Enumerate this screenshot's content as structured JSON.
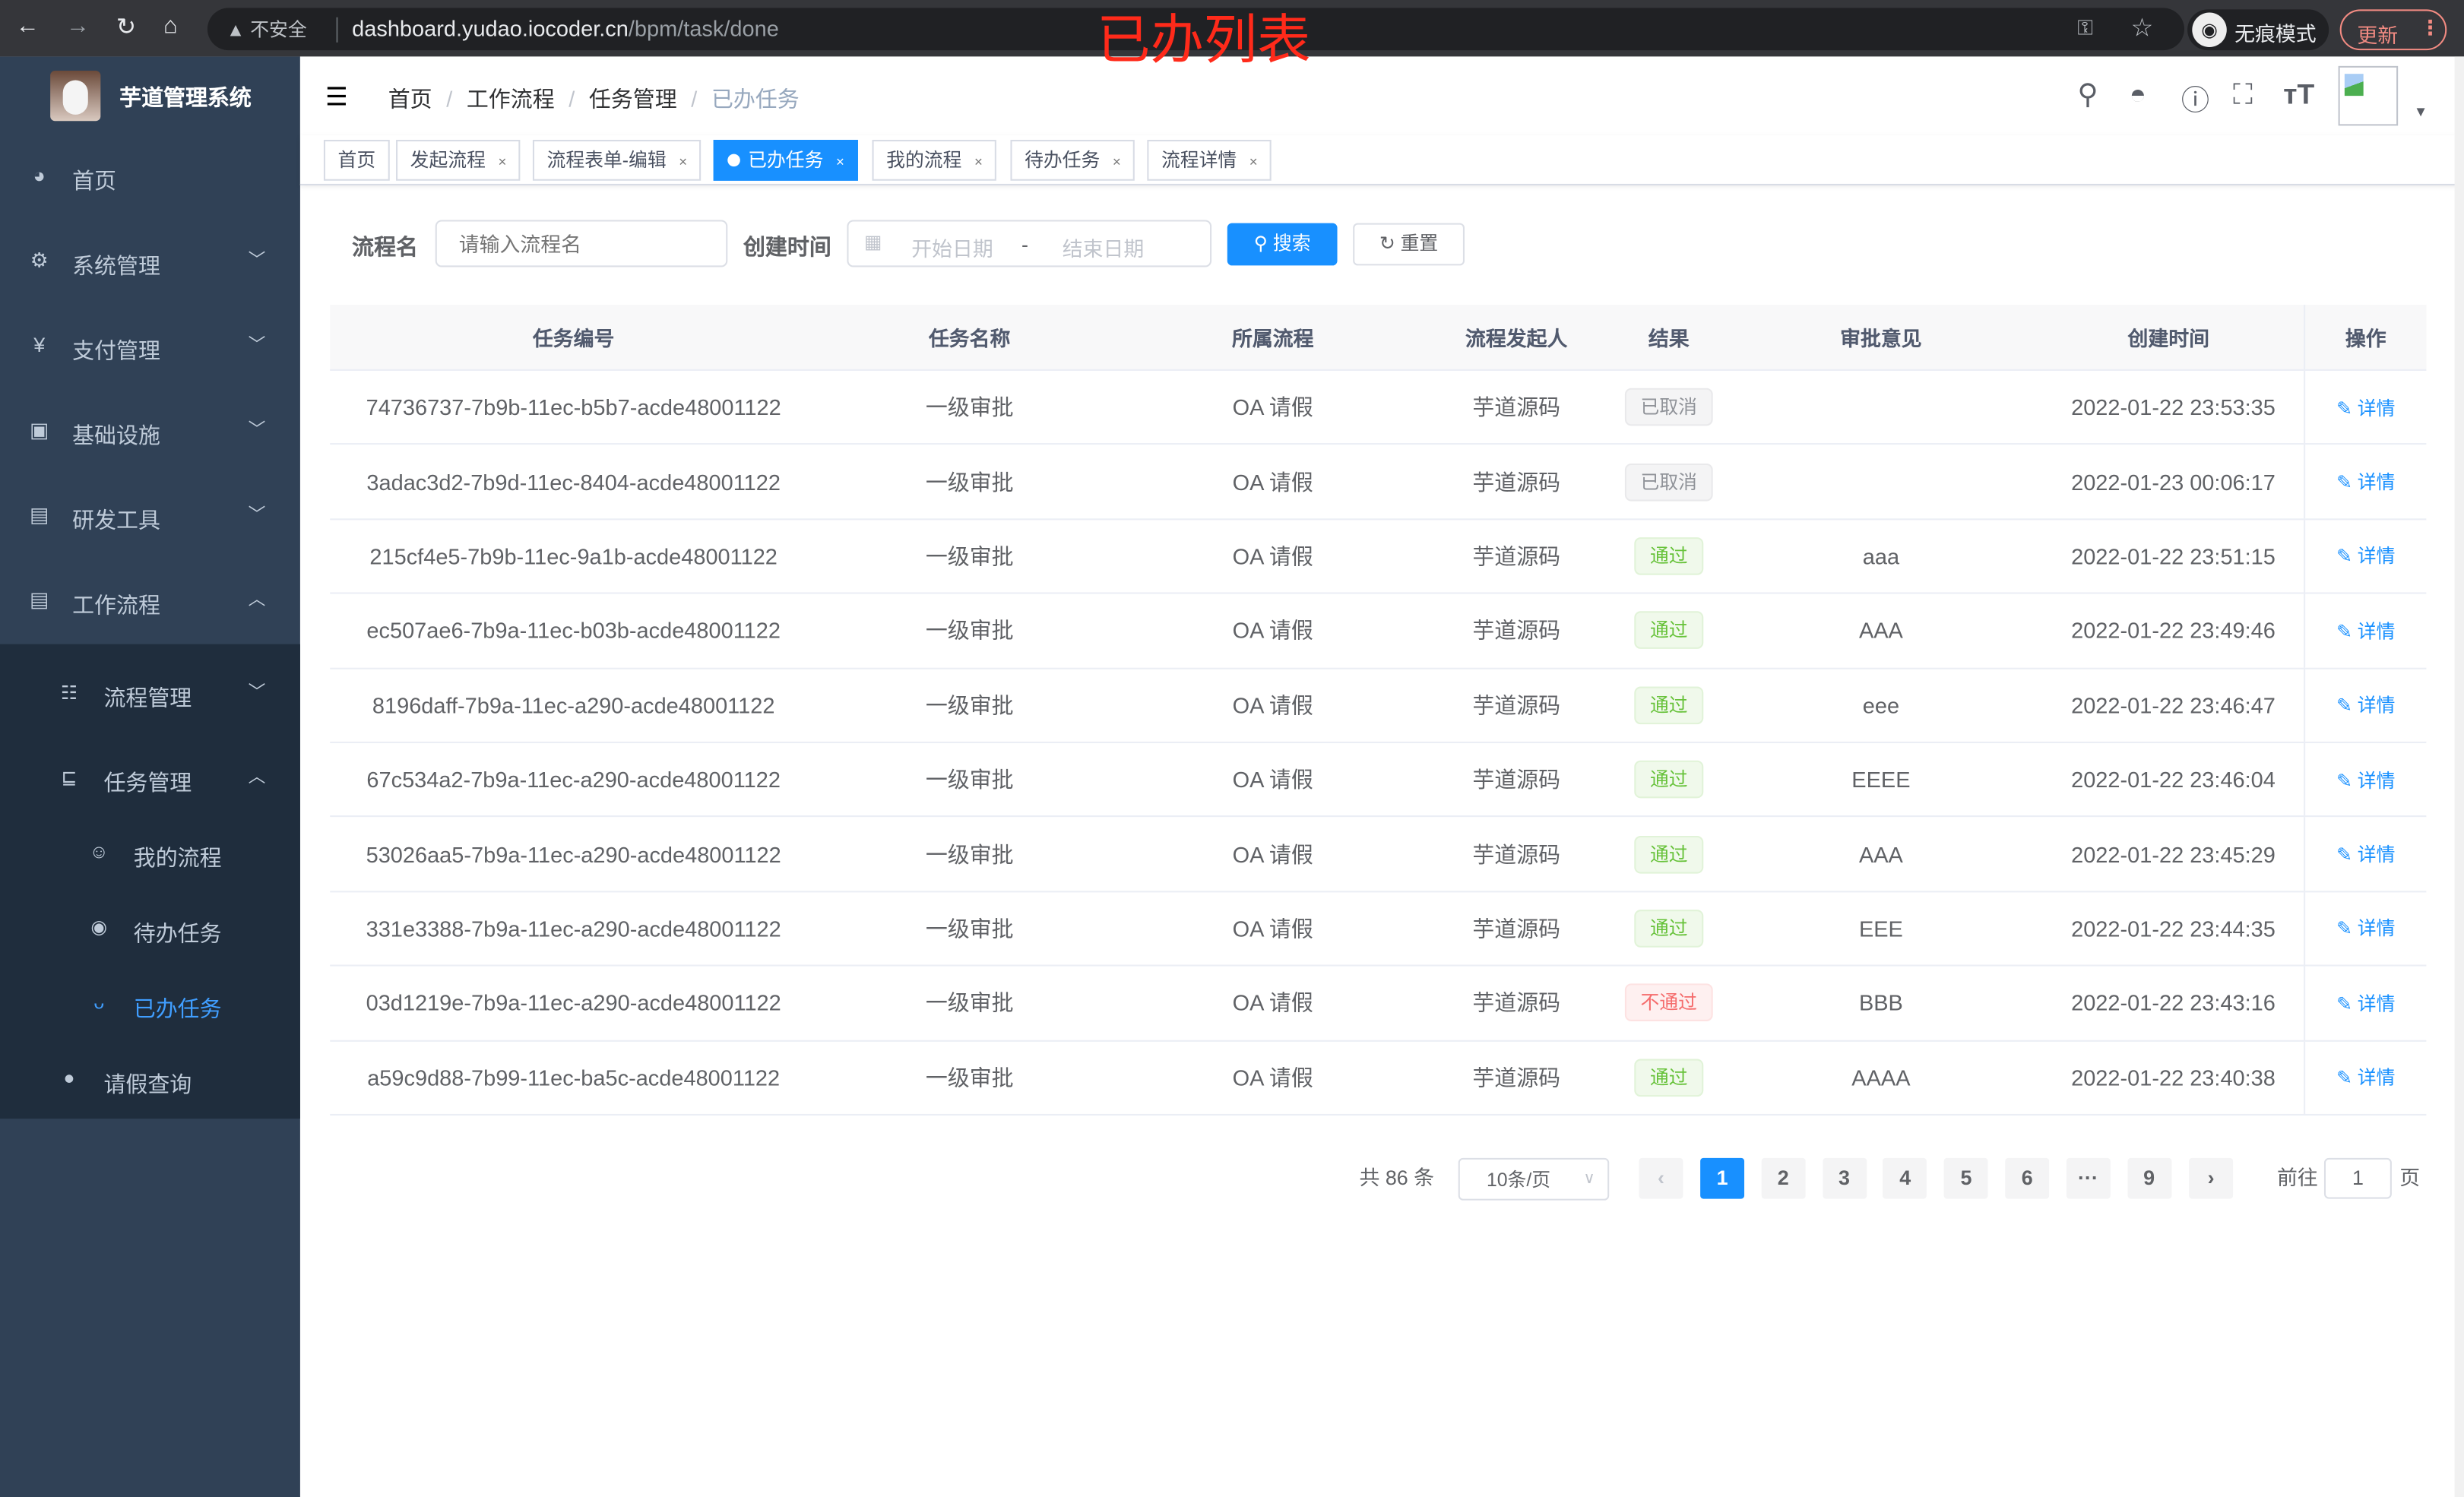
{
  "browser": {
    "security": "不安全",
    "url_host": "dashboard.yudao.iocoder.cn",
    "url_path": "/bpm/task/done",
    "incognito": "无痕模式",
    "update": "更新"
  },
  "annotation": "已办列表",
  "app": {
    "title": "芋道管理系统"
  },
  "sidebar": {
    "items": [
      {
        "label": "首页",
        "icon": "dashboard-icon"
      },
      {
        "label": "系统管理",
        "icon": "gear-icon"
      },
      {
        "label": "支付管理",
        "icon": "yen-icon"
      },
      {
        "label": "基础设施",
        "icon": "monitor-icon"
      },
      {
        "label": "研发工具",
        "icon": "toolbox-icon"
      },
      {
        "label": "工作流程",
        "icon": "toolbox-icon"
      }
    ],
    "sub": [
      {
        "label": "流程管理"
      },
      {
        "label": "任务管理"
      },
      {
        "label": "我的流程"
      },
      {
        "label": "待办任务"
      },
      {
        "label": "已办任务"
      },
      {
        "label": "请假查询"
      }
    ]
  },
  "breadcrumb": [
    "首页",
    "工作流程",
    "任务管理",
    "已办任务"
  ],
  "tags": [
    "首页",
    "发起流程",
    "流程表单-编辑",
    "已办任务",
    "我的流程",
    "待办任务",
    "流程详情"
  ],
  "filters": {
    "name_label": "流程名",
    "name_placeholder": "请输入流程名",
    "time_label": "创建时间",
    "start_placeholder": "开始日期",
    "sep": "-",
    "end_placeholder": "结束日期",
    "search": "搜索",
    "reset": "重置"
  },
  "table": {
    "columns": [
      "任务编号",
      "任务名称",
      "所属流程",
      "流程发起人",
      "结果",
      "审批意见",
      "创建时间",
      "操作"
    ],
    "action": "详情",
    "rows": [
      {
        "id": "74736737-7b9b-11ec-b5b7-acde48001122",
        "name": "一级审批",
        "process": "OA 请假",
        "starter": "芋道源码",
        "result": "已取消",
        "status": "cancel",
        "comment": "",
        "time": "2022-01-22 23:53:35"
      },
      {
        "id": "3adac3d2-7b9d-11ec-8404-acde48001122",
        "name": "一级审批",
        "process": "OA 请假",
        "starter": "芋道源码",
        "result": "已取消",
        "status": "cancel",
        "comment": "",
        "time": "2022-01-23 00:06:17"
      },
      {
        "id": "215cf4e5-7b9b-11ec-9a1b-acde48001122",
        "name": "一级审批",
        "process": "OA 请假",
        "starter": "芋道源码",
        "result": "通过",
        "status": "pass",
        "comment": "aaa",
        "time": "2022-01-22 23:51:15"
      },
      {
        "id": "ec507ae6-7b9a-11ec-b03b-acde48001122",
        "name": "一级审批",
        "process": "OA 请假",
        "starter": "芋道源码",
        "result": "通过",
        "status": "pass",
        "comment": "AAA",
        "time": "2022-01-22 23:49:46"
      },
      {
        "id": "8196daff-7b9a-11ec-a290-acde48001122",
        "name": "一级审批",
        "process": "OA 请假",
        "starter": "芋道源码",
        "result": "通过",
        "status": "pass",
        "comment": "eee",
        "time": "2022-01-22 23:46:47"
      },
      {
        "id": "67c534a2-7b9a-11ec-a290-acde48001122",
        "name": "一级审批",
        "process": "OA 请假",
        "starter": "芋道源码",
        "result": "通过",
        "status": "pass",
        "comment": "EEEE",
        "time": "2022-01-22 23:46:04"
      },
      {
        "id": "53026aa5-7b9a-11ec-a290-acde48001122",
        "name": "一级审批",
        "process": "OA 请假",
        "starter": "芋道源码",
        "result": "通过",
        "status": "pass",
        "comment": "AAA",
        "time": "2022-01-22 23:45:29"
      },
      {
        "id": "331e3388-7b9a-11ec-a290-acde48001122",
        "name": "一级审批",
        "process": "OA 请假",
        "starter": "芋道源码",
        "result": "通过",
        "status": "pass",
        "comment": "EEE",
        "time": "2022-01-22 23:44:35"
      },
      {
        "id": "03d1219e-7b9a-11ec-a290-acde48001122",
        "name": "一级审批",
        "process": "OA 请假",
        "starter": "芋道源码",
        "result": "不通过",
        "status": "fail",
        "comment": "BBB",
        "time": "2022-01-22 23:43:16"
      },
      {
        "id": "a59c9d88-7b99-11ec-ba5c-acde48001122",
        "name": "一级审批",
        "process": "OA 请假",
        "starter": "芋道源码",
        "result": "通过",
        "status": "pass",
        "comment": "AAAA",
        "time": "2022-01-22 23:40:38"
      }
    ]
  },
  "pagination": {
    "total": "共 86 条",
    "page_size": "10条/页",
    "pages": [
      "1",
      "2",
      "3",
      "4",
      "5",
      "6",
      "···",
      "9"
    ],
    "current": "1",
    "goto_label": "前往",
    "goto_value": "1",
    "goto_suffix": "页"
  },
  "colors": {
    "accent": "#1890ff",
    "sidebar": "#304156",
    "submenu": "#1f2d3d"
  }
}
